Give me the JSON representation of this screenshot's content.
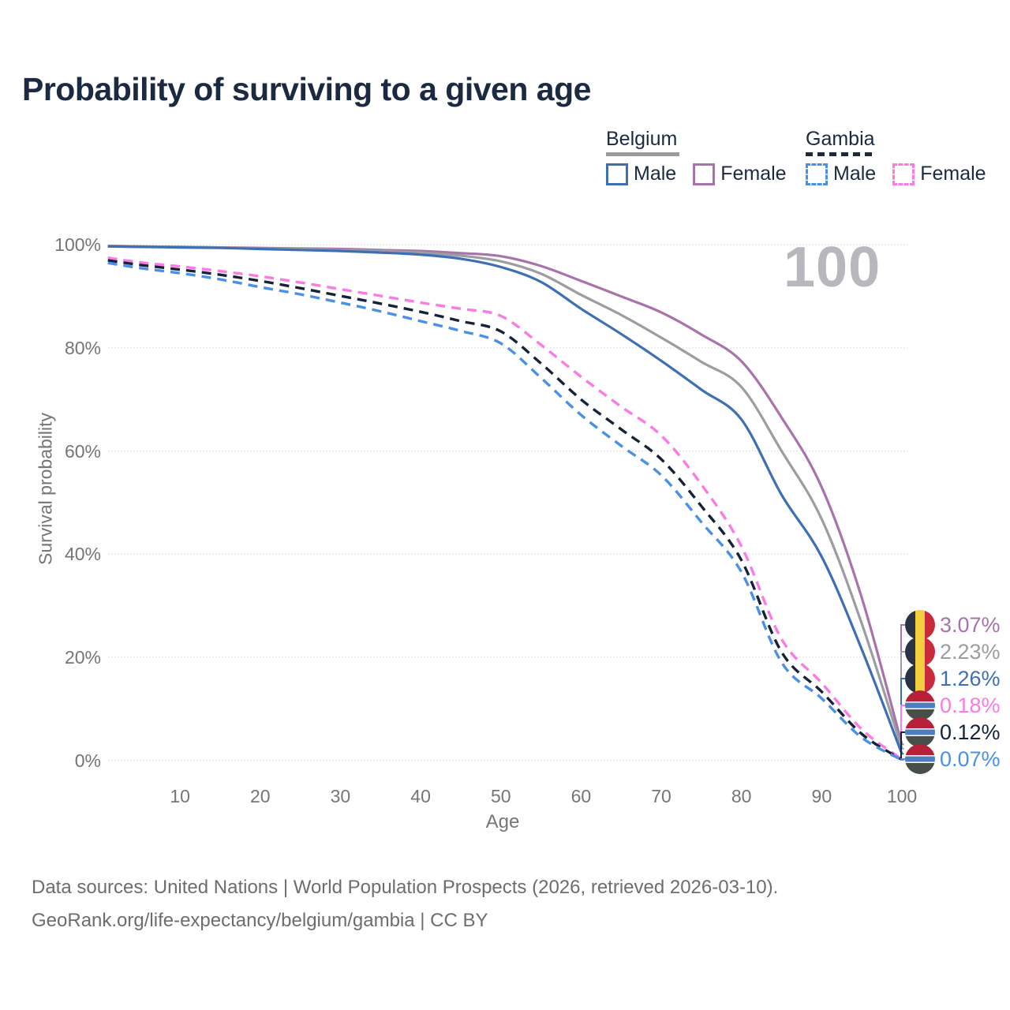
{
  "title": "Probability of surviving to a given age",
  "age_counter": "100",
  "legend": {
    "groups": [
      {
        "label": "Belgium",
        "line_style": "solid",
        "underline_color": "#9b9b9b",
        "items": [
          {
            "label": "Male",
            "color": "#3e6fb5"
          },
          {
            "label": "Female",
            "color": "#a873ab"
          }
        ]
      },
      {
        "label": "Gambia",
        "line_style": "dashed",
        "underline_color": "#1b2a41",
        "items": [
          {
            "label": "Male",
            "color": "#4b90e8"
          },
          {
            "label": "Female",
            "color": "#fb7be4"
          }
        ]
      }
    ]
  },
  "axes": {
    "y_title": "Survival probability",
    "x_title": "Age",
    "y_tick_labels": [
      "100%",
      "80%",
      "60%",
      "40%",
      "20%",
      "0%"
    ],
    "y_tick_values": [
      100,
      80,
      60,
      40,
      20,
      0
    ],
    "x_tick_values": [
      10,
      20,
      30,
      40,
      50,
      60,
      70,
      80,
      90,
      100
    ]
  },
  "chart_data": {
    "type": "line",
    "title": "Probability of surviving to a given age",
    "xlabel": "Age",
    "ylabel": "Survival probability",
    "xlim": [
      1,
      100
    ],
    "ylim_percent": [
      0,
      100
    ],
    "grid": true,
    "legend_position": "top-right",
    "ages": [
      1,
      5,
      10,
      15,
      20,
      25,
      30,
      35,
      40,
      45,
      50,
      55,
      60,
      65,
      70,
      75,
      80,
      85,
      90,
      95,
      100
    ],
    "series": [
      {
        "id": "belgium-female",
        "country": "Belgium",
        "legend_label": "Female",
        "style": "solid",
        "color": "#a873ab",
        "end_label": "3.07%",
        "flag": "belgium",
        "values": [
          99.8,
          99.7,
          99.6,
          99.5,
          99.4,
          99.3,
          99.2,
          99.0,
          98.8,
          98.4,
          97.8,
          95.9,
          93.0,
          90.0,
          86.9,
          82.6,
          77.4,
          66.5,
          53.0,
          31.5,
          3.07
        ]
      },
      {
        "id": "belgium-combined",
        "country": "Belgium",
        "legend_label": "",
        "style": "solid",
        "color": "#9c9ca1",
        "end_label": "2.23%",
        "flag": "belgium",
        "values": [
          99.8,
          99.7,
          99.6,
          99.5,
          99.3,
          99.2,
          99.0,
          98.8,
          98.5,
          97.9,
          96.8,
          94.4,
          90.3,
          86.4,
          82.0,
          77.3,
          72.4,
          60.0,
          46.8,
          26.5,
          2.23
        ]
      },
      {
        "id": "belgium-male",
        "country": "Belgium",
        "legend_label": "Male",
        "style": "solid",
        "color": "#3e6fb5",
        "end_label": "1.26%",
        "flag": "belgium",
        "values": [
          99.7,
          99.6,
          99.5,
          99.4,
          99.2,
          99.0,
          98.8,
          98.5,
          98.1,
          97.3,
          95.7,
          92.8,
          87.6,
          82.7,
          77.5,
          71.9,
          66.1,
          51.5,
          39.5,
          21.5,
          1.26
        ]
      },
      {
        "id": "gambia-female",
        "country": "Gambia",
        "legend_label": "Female",
        "style": "dashed",
        "color": "#fb7be4",
        "end_label": "0.18%",
        "flag": "gambia",
        "values": [
          97.5,
          96.6,
          95.8,
          94.9,
          93.9,
          92.7,
          91.4,
          90.1,
          88.8,
          87.6,
          86.2,
          80.6,
          74.4,
          68.6,
          63.0,
          53.5,
          41.5,
          23.5,
          15.0,
          6.0,
          0.18
        ]
      },
      {
        "id": "gambia-combined",
        "country": "Gambia",
        "legend_label": "",
        "style": "dashed",
        "color": "#152238",
        "end_label": "0.12%",
        "flag": "gambia",
        "values": [
          97.0,
          96.1,
          95.2,
          94.2,
          93.0,
          91.6,
          90.1,
          88.6,
          87.0,
          85.2,
          83.2,
          77.0,
          70.0,
          64.2,
          58.4,
          49.3,
          38.8,
          21.0,
          13.3,
          5.1,
          0.12
        ]
      },
      {
        "id": "gambia-male",
        "country": "Gambia",
        "legend_label": "Male",
        "style": "dashed",
        "color": "#4b90e8",
        "end_label": "0.07%",
        "flag": "gambia",
        "values": [
          96.5,
          95.5,
          94.5,
          93.3,
          91.8,
          90.4,
          88.8,
          87.1,
          85.2,
          83.3,
          80.9,
          74.2,
          67.0,
          61.0,
          55.3,
          46.2,
          36.5,
          19.0,
          12.0,
          4.4,
          0.07
        ]
      }
    ]
  },
  "footer": {
    "line1": "Data sources: United Nations | World Population Prospects (2026, retrieved 2026-03-10).",
    "line2": "GeoRank.org/life-expectancy/belgium/gambia | CC BY"
  }
}
